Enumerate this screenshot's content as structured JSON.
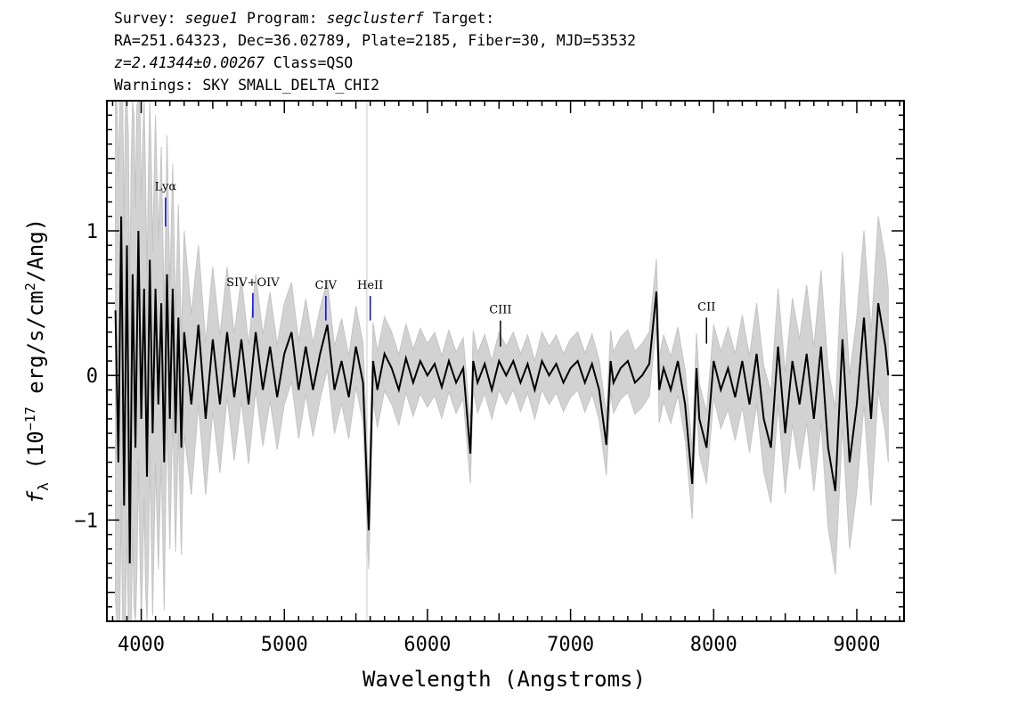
{
  "header": {
    "line1": {
      "k1": "Survey: ",
      "survey": "segue1",
      "k2": " Program: ",
      "program": "segclusterf",
      "k3": " Target:"
    },
    "line2": "RA=251.64323, Dec=36.02789, Plate=2185, Fiber=30, MJD=53532",
    "line3": {
      "z": "z=2.41344±0.00267",
      "cls": " Class=QSO"
    },
    "line4": "Warnings: SKY SMALL_DELTA_CHI2"
  },
  "chart_data": {
    "type": "line",
    "xlabel": "Wavelength (Angstroms)",
    "ylabel_parts": {
      "f": "f",
      "sub": "λ",
      "pre": " (10",
      "exp1": "−17",
      "mid": " erg/s/cm",
      "exp2": "2",
      "post": "/Ang)"
    },
    "xlim": [
      3760,
      9330
    ],
    "ylim": [
      -1.7,
      1.9
    ],
    "x_ticks": [
      4000,
      5000,
      6000,
      7000,
      8000,
      9000
    ],
    "x_tick_labels": [
      "4000",
      "5000",
      "6000",
      "7000",
      "8000",
      "9000"
    ],
    "y_ticks": [
      -1,
      0,
      1
    ],
    "y_tick_labels": [
      "−1",
      "0",
      "1"
    ],
    "wavelength_range": [
      3820,
      9220
    ],
    "series": [
      {
        "role": "flux",
        "color": "#000000",
        "points": [
          [
            3820,
            0.45
          ],
          [
            3840,
            -0.6
          ],
          [
            3860,
            1.1
          ],
          [
            3880,
            -0.9
          ],
          [
            3900,
            0.9
          ],
          [
            3920,
            -1.3
          ],
          [
            3940,
            0.7
          ],
          [
            3960,
            -0.5
          ],
          [
            3980,
            1.0
          ],
          [
            4000,
            -0.3
          ],
          [
            4020,
            0.6
          ],
          [
            4040,
            -0.7
          ],
          [
            4060,
            0.8
          ],
          [
            4080,
            -0.4
          ],
          [
            4100,
            0.6
          ],
          [
            4120,
            -0.2
          ],
          [
            4140,
            0.5
          ],
          [
            4160,
            -0.6
          ],
          [
            4180,
            0.7
          ],
          [
            4200,
            -0.3
          ],
          [
            4220,
            0.6
          ],
          [
            4240,
            -0.4
          ],
          [
            4260,
            0.4
          ],
          [
            4280,
            -0.5
          ],
          [
            4300,
            0.3
          ],
          [
            4350,
            -0.2
          ],
          [
            4400,
            0.35
          ],
          [
            4450,
            -0.3
          ],
          [
            4500,
            0.25
          ],
          [
            4550,
            -0.2
          ],
          [
            4600,
            0.3
          ],
          [
            4650,
            -0.15
          ],
          [
            4700,
            0.25
          ],
          [
            4750,
            -0.2
          ],
          [
            4800,
            0.3
          ],
          [
            4850,
            -0.1
          ],
          [
            4900,
            0.2
          ],
          [
            4950,
            -0.15
          ],
          [
            5000,
            0.15
          ],
          [
            5050,
            0.3
          ],
          [
            5100,
            -0.1
          ],
          [
            5150,
            0.2
          ],
          [
            5200,
            -0.1
          ],
          [
            5250,
            0.15
          ],
          [
            5300,
            0.35
          ],
          [
            5350,
            -0.1
          ],
          [
            5400,
            0.1
          ],
          [
            5450,
            -0.15
          ],
          [
            5500,
            0.2
          ],
          [
            5550,
            -0.05
          ],
          [
            5590,
            -1.07
          ],
          [
            5620,
            0.1
          ],
          [
            5650,
            -0.1
          ],
          [
            5700,
            0.15
          ],
          [
            5750,
            0.05
          ],
          [
            5800,
            -0.1
          ],
          [
            5850,
            0.12
          ],
          [
            5900,
            -0.05
          ],
          [
            5950,
            0.1
          ],
          [
            6000,
            0.0
          ],
          [
            6050,
            0.08
          ],
          [
            6100,
            -0.08
          ],
          [
            6150,
            0.1
          ],
          [
            6200,
            -0.05
          ],
          [
            6250,
            0.05
          ],
          [
            6300,
            -0.54
          ],
          [
            6320,
            0.1
          ],
          [
            6350,
            -0.05
          ],
          [
            6400,
            0.08
          ],
          [
            6450,
            -0.1
          ],
          [
            6500,
            0.1
          ],
          [
            6550,
            0.0
          ],
          [
            6600,
            0.1
          ],
          [
            6650,
            -0.05
          ],
          [
            6700,
            0.08
          ],
          [
            6750,
            -0.1
          ],
          [
            6800,
            0.1
          ],
          [
            6850,
            0.0
          ],
          [
            6900,
            0.08
          ],
          [
            6950,
            -0.05
          ],
          [
            7000,
            0.05
          ],
          [
            7050,
            0.1
          ],
          [
            7100,
            -0.05
          ],
          [
            7150,
            0.08
          ],
          [
            7200,
            -0.1
          ],
          [
            7250,
            -0.48
          ],
          [
            7280,
            0.1
          ],
          [
            7300,
            -0.05
          ],
          [
            7350,
            0.05
          ],
          [
            7400,
            0.1
          ],
          [
            7450,
            -0.05
          ],
          [
            7500,
            0.0
          ],
          [
            7550,
            0.08
          ],
          [
            7600,
            0.58
          ],
          [
            7620,
            -0.1
          ],
          [
            7650,
            0.05
          ],
          [
            7700,
            -0.1
          ],
          [
            7750,
            0.1
          ],
          [
            7800,
            -0.2
          ],
          [
            7850,
            -0.75
          ],
          [
            7880,
            0.05
          ],
          [
            7900,
            -0.3
          ],
          [
            7950,
            -0.5
          ],
          [
            8000,
            0.1
          ],
          [
            8050,
            -0.1
          ],
          [
            8100,
            0.05
          ],
          [
            8150,
            -0.15
          ],
          [
            8200,
            0.1
          ],
          [
            8250,
            -0.2
          ],
          [
            8300,
            0.15
          ],
          [
            8350,
            -0.3
          ],
          [
            8400,
            -0.5
          ],
          [
            8450,
            0.2
          ],
          [
            8500,
            -0.4
          ],
          [
            8550,
            0.1
          ],
          [
            8600,
            -0.2
          ],
          [
            8650,
            0.15
          ],
          [
            8700,
            -0.3
          ],
          [
            8750,
            0.2
          ],
          [
            8800,
            -0.5
          ],
          [
            8850,
            -0.8
          ],
          [
            8900,
            0.25
          ],
          [
            8950,
            -0.6
          ],
          [
            9000,
            -0.2
          ],
          [
            9050,
            0.4
          ],
          [
            9100,
            -0.3
          ],
          [
            9150,
            0.5
          ],
          [
            9200,
            0.2
          ],
          [
            9220,
            0.0
          ]
        ]
      },
      {
        "role": "noise_envelope",
        "color": "#c8c8c8",
        "points": [
          [
            3820,
            2.0
          ],
          [
            3900,
            1.9
          ],
          [
            4000,
            1.5
          ],
          [
            4100,
            1.2
          ],
          [
            4200,
            0.9
          ],
          [
            4300,
            0.7
          ],
          [
            4400,
            0.55
          ],
          [
            4600,
            0.45
          ],
          [
            4800,
            0.4
          ],
          [
            5000,
            0.35
          ],
          [
            5500,
            0.28
          ],
          [
            6000,
            0.22
          ],
          [
            6500,
            0.2
          ],
          [
            7000,
            0.2
          ],
          [
            7500,
            0.22
          ],
          [
            8000,
            0.25
          ],
          [
            8300,
            0.35
          ],
          [
            8600,
            0.45
          ],
          [
            8900,
            0.6
          ],
          [
            9100,
            0.6
          ],
          [
            9220,
            0.6
          ]
        ]
      }
    ],
    "annotations": [
      {
        "label": "Lyα",
        "wavelength": 4170,
        "y_top": 1.23,
        "y_bottom": 1.03,
        "color": "#0000ff"
      },
      {
        "label": "SIV+OIV",
        "wavelength": 4780,
        "y_top": 0.57,
        "y_bottom": 0.4,
        "color": "#0000ff"
      },
      {
        "label": "CIV",
        "wavelength": 5290,
        "y_top": 0.55,
        "y_bottom": 0.38,
        "color": "#0000ff"
      },
      {
        "label": "HeII",
        "wavelength": 5600,
        "y_top": 0.55,
        "y_bottom": 0.38,
        "color": "#0000ff"
      },
      {
        "label": "CIII",
        "wavelength": 6510,
        "y_top": 0.38,
        "y_bottom": 0.2,
        "color": "#000000"
      },
      {
        "label": "CII",
        "wavelength": 7950,
        "y_top": 0.4,
        "y_bottom": 0.22,
        "color": "#000000"
      }
    ]
  }
}
